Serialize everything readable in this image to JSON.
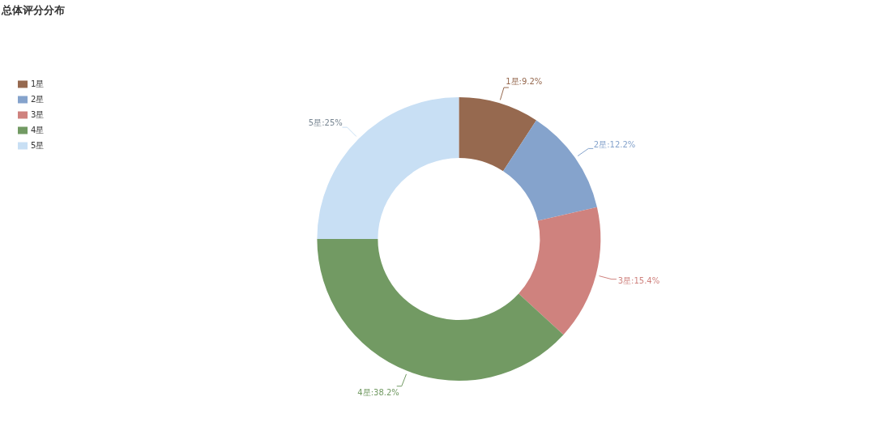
{
  "chart_data": {
    "type": "donut",
    "title": "总体评分分布",
    "categories": [
      "1星",
      "2星",
      "3星",
      "4星",
      "5星"
    ],
    "values": [
      9.2,
      12.2,
      15.4,
      38.2,
      25
    ],
    "colors": [
      "#96694f",
      "#85a3cc",
      "#cf827e",
      "#729a63",
      "#c8dff4"
    ],
    "value_labels": [
      "1星:9.2%",
      "2星:12.2%",
      "3星:15.4%",
      "4星:38.2%",
      "5星:25%"
    ],
    "legend": "top left"
  }
}
